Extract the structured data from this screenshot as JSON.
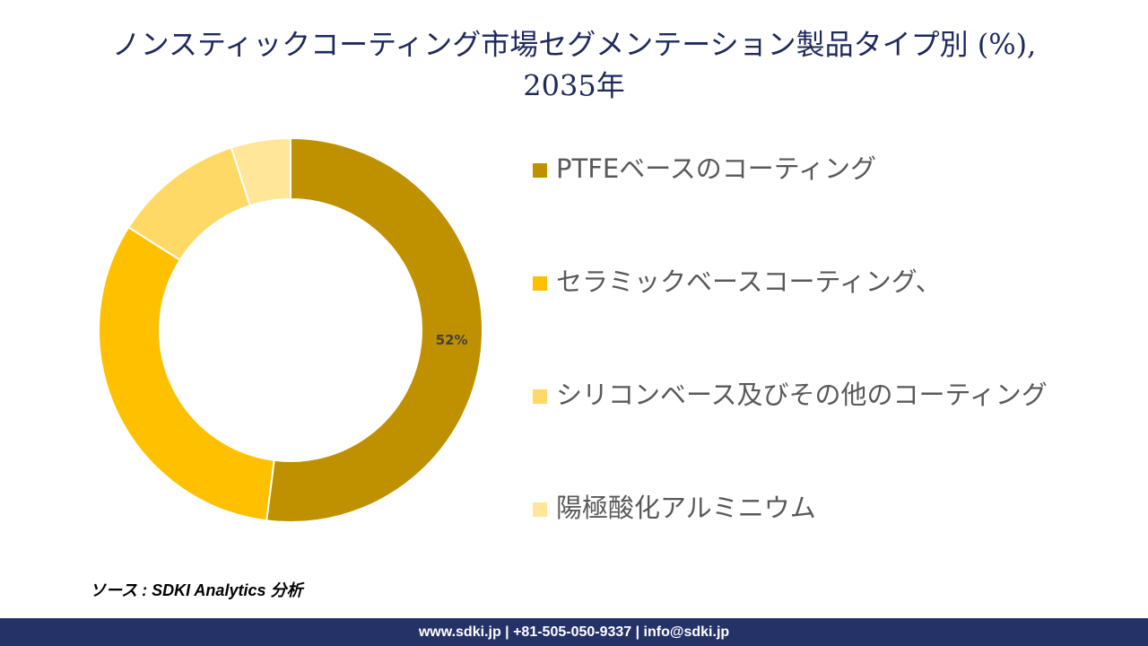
{
  "chart_data": {
    "type": "donut",
    "title": [
      "ノンスティックコーティング市場セグメンテーション製品タイプ別 (%),",
      "2035年"
    ],
    "categories": [
      "PTFEベースのコーティング",
      "セラミックベースコーティング、",
      "シリコンベース及びその他のコーティング",
      "陽極酸化アルミニウム"
    ],
    "values": [
      52,
      32,
      11,
      5
    ],
    "value_labels": [
      "52%",
      null,
      null,
      null
    ],
    "colors": [
      "#bf9000",
      "#ffc000",
      "#ffd966",
      "#ffe699"
    ],
    "legend": "right"
  },
  "source": "ソース : SDKI Analytics 分析",
  "footer": "www.sdki.jp | +81-505-050-9337 | info@sdki.jp"
}
